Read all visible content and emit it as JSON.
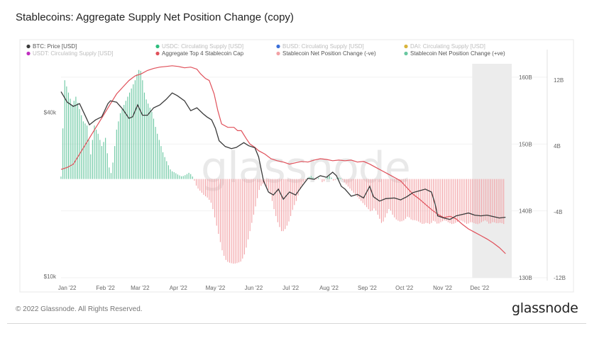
{
  "title": "Stablecoins: Aggregate Supply Net Position Change (copy)",
  "footer": {
    "copyright": "© 2022 Glassnode. All Rights Reserved.",
    "brand": "glassnode"
  },
  "watermark": "glassnode",
  "colors": {
    "btc_price": "#3a3a3a",
    "cap": "#e0505a",
    "neg": "#f2a1a5",
    "pos": "#68c7a0",
    "legend_usdc": "#2ebd7d",
    "legend_busd": "#3b6fd8",
    "legend_dai": "#d8b43b",
    "legend_usdt": "#c02fc0",
    "forecast_shade": "#ececec"
  },
  "legend": [
    {
      "label": "BTC: Price [USD]",
      "color": "#3a3a3a",
      "faint": false
    },
    {
      "label": "USDC: Circulating Supply [USD]",
      "color": "#2ebd7d",
      "faint": true
    },
    {
      "label": "BUSD: Circulating Supply [USD]",
      "color": "#3b6fd8",
      "faint": true
    },
    {
      "label": "DAI: Circulating Supply [USD]",
      "color": "#d8b43b",
      "faint": true
    },
    {
      "label": "USDT: Circulating Supply [USD]",
      "color": "#c02fc0",
      "faint": true
    },
    {
      "label": "Aggregate Top 4 Stablecoin Cap",
      "color": "#e0505a",
      "faint": false
    },
    {
      "label": "Stablecoin Net Position Change (-ve)",
      "color": "#f2a1a5",
      "faint": false
    },
    {
      "label": "Stablecoin Net Position Change (+ve)",
      "color": "#68c7a0",
      "faint": false
    }
  ],
  "chart_data": {
    "type": "line",
    "x_ticks": [
      "Jan '22",
      "Feb '22",
      "Mar '22",
      "Apr '22",
      "May '22",
      "Jun '22",
      "Jul '22",
      "Aug '22",
      "Sep '22",
      "Oct '22",
      "Nov '22",
      "Dec '22"
    ],
    "axes": {
      "price_left": {
        "scale": "log",
        "range": [
          10000,
          60000
        ],
        "ticks": [
          "$40k",
          "$10k"
        ]
      },
      "cap_right": {
        "range": [
          130,
          162
        ],
        "ticks": [
          "160B",
          "150B",
          "140B",
          "130B"
        ]
      },
      "change_right": {
        "range": [
          -12,
          14
        ],
        "ticks": [
          "12B",
          "4B",
          "-4B",
          "-12B"
        ]
      }
    },
    "x_range": [
      0,
      365
    ],
    "forecast_start": 333,
    "btc_price": [
      [
        0,
        47500
      ],
      [
        5,
        43500
      ],
      [
        10,
        42000
      ],
      [
        15,
        43000
      ],
      [
        20,
        38500
      ],
      [
        23,
        36000
      ],
      [
        28,
        37500
      ],
      [
        33,
        38500
      ],
      [
        38,
        43000
      ],
      [
        40,
        44000
      ],
      [
        45,
        43500
      ],
      [
        50,
        41000
      ],
      [
        55,
        38000
      ],
      [
        58,
        38500
      ],
      [
        62,
        42500
      ],
      [
        66,
        39000
      ],
      [
        70,
        39000
      ],
      [
        75,
        41500
      ],
      [
        80,
        42500
      ],
      [
        85,
        44500
      ],
      [
        90,
        47000
      ],
      [
        94,
        46000
      ],
      [
        100,
        44000
      ],
      [
        105,
        40500
      ],
      [
        110,
        41500
      ],
      [
        115,
        39500
      ],
      [
        118,
        38500
      ],
      [
        122,
        37500
      ],
      [
        125,
        35000
      ],
      [
        128,
        31500
      ],
      [
        133,
        30000
      ],
      [
        138,
        29500
      ],
      [
        142,
        29800
      ],
      [
        148,
        31000
      ],
      [
        152,
        30200
      ],
      [
        157,
        29700
      ],
      [
        160,
        27500
      ],
      [
        164,
        22500
      ],
      [
        168,
        20500
      ],
      [
        172,
        20000
      ],
      [
        176,
        21000
      ],
      [
        180,
        19300
      ],
      [
        185,
        20500
      ],
      [
        190,
        20000
      ],
      [
        195,
        21500
      ],
      [
        200,
        23000
      ],
      [
        205,
        22800
      ],
      [
        210,
        23500
      ],
      [
        215,
        23200
      ],
      [
        220,
        24200
      ],
      [
        223,
        23500
      ],
      [
        227,
        21500
      ],
      [
        230,
        21000
      ],
      [
        235,
        19800
      ],
      [
        240,
        20100
      ],
      [
        245,
        19500
      ],
      [
        250,
        21500
      ],
      [
        253,
        19700
      ],
      [
        258,
        19000
      ],
      [
        263,
        19400
      ],
      [
        270,
        19500
      ],
      [
        275,
        19200
      ],
      [
        280,
        19700
      ],
      [
        285,
        20400
      ],
      [
        290,
        20700
      ],
      [
        295,
        21000
      ],
      [
        300,
        20500
      ],
      [
        303,
        18500
      ],
      [
        305,
        16800
      ],
      [
        310,
        16500
      ],
      [
        315,
        16300
      ],
      [
        320,
        16800
      ],
      [
        325,
        17000
      ],
      [
        330,
        17200
      ],
      [
        335,
        16900
      ],
      [
        340,
        16800
      ],
      [
        345,
        16900
      ],
      [
        350,
        16700
      ],
      [
        355,
        16500
      ],
      [
        360,
        16600
      ]
    ],
    "stablecoin_cap": [
      [
        0,
        146.2
      ],
      [
        5,
        146.5
      ],
      [
        10,
        147
      ],
      [
        15,
        148.5
      ],
      [
        20,
        150
      ],
      [
        25,
        151.5
      ],
      [
        30,
        153
      ],
      [
        35,
        154.5
      ],
      [
        40,
        156
      ],
      [
        45,
        157.5
      ],
      [
        50,
        158.5
      ],
      [
        55,
        159.5
      ],
      [
        60,
        160.2
      ],
      [
        65,
        160.5
      ],
      [
        70,
        161
      ],
      [
        75,
        161.3
      ],
      [
        80,
        161.5
      ],
      [
        85,
        161.6
      ],
      [
        90,
        161.7
      ],
      [
        95,
        161.6
      ],
      [
        100,
        161.4
      ],
      [
        105,
        161.5
      ],
      [
        110,
        161.2
      ],
      [
        113,
        160.5
      ],
      [
        117,
        159.8
      ],
      [
        120,
        159.5
      ],
      [
        124,
        157.5
      ],
      [
        127,
        155
      ],
      [
        130,
        153
      ],
      [
        135,
        152.5
      ],
      [
        140,
        152.5
      ],
      [
        143,
        152
      ],
      [
        146,
        152
      ],
      [
        150,
        150.8
      ],
      [
        153,
        150
      ],
      [
        157,
        149.5
      ],
      [
        160,
        149
      ],
      [
        165,
        148.5
      ],
      [
        170,
        147.8
      ],
      [
        175,
        147.5
      ],
      [
        180,
        147.3
      ],
      [
        185,
        147
      ],
      [
        190,
        147.2
      ],
      [
        195,
        147.4
      ],
      [
        200,
        147.3
      ],
      [
        205,
        147.6
      ],
      [
        210,
        147.8
      ],
      [
        215,
        147.7
      ],
      [
        220,
        147.5
      ],
      [
        225,
        147.6
      ],
      [
        230,
        147.5
      ],
      [
        235,
        147.6
      ],
      [
        240,
        147.3
      ],
      [
        245,
        147.4
      ],
      [
        250,
        147
      ],
      [
        255,
        146.5
      ],
      [
        260,
        146
      ],
      [
        265,
        145.5
      ],
      [
        270,
        145
      ],
      [
        275,
        144.5
      ],
      [
        280,
        143.5
      ],
      [
        285,
        142.5
      ],
      [
        290,
        141.8
      ],
      [
        295,
        141
      ],
      [
        300,
        140.2
      ],
      [
        305,
        139.5
      ],
      [
        310,
        139
      ],
      [
        315,
        139.2
      ],
      [
        320,
        138.8
      ],
      [
        325,
        138
      ],
      [
        330,
        137.3
      ],
      [
        335,
        136.8
      ],
      [
        340,
        136.3
      ],
      [
        345,
        135.8
      ],
      [
        350,
        135.2
      ],
      [
        355,
        134.5
      ],
      [
        360,
        133.6
      ]
    ],
    "net_position_change": [
      [
        0,
        0.3
      ],
      [
        3,
        12
      ],
      [
        6,
        10.5
      ],
      [
        9,
        9
      ],
      [
        12,
        10
      ],
      [
        15,
        8.5
      ],
      [
        18,
        7
      ],
      [
        21,
        6.5
      ],
      [
        24,
        3
      ],
      [
        27,
        6.5
      ],
      [
        30,
        5.5
      ],
      [
        33,
        4
      ],
      [
        36,
        5
      ],
      [
        38,
        2.5
      ],
      [
        40,
        0.3
      ],
      [
        42,
        2
      ],
      [
        45,
        6
      ],
      [
        48,
        8
      ],
      [
        51,
        9
      ],
      [
        54,
        10
      ],
      [
        57,
        11
      ],
      [
        60,
        12
      ],
      [
        62,
        13
      ],
      [
        64,
        13.5
      ],
      [
        66,
        12
      ],
      [
        68,
        10
      ],
      [
        71,
        9
      ],
      [
        74,
        8
      ],
      [
        77,
        6
      ],
      [
        80,
        4.5
      ],
      [
        83,
        3
      ],
      [
        86,
        2
      ],
      [
        89,
        1
      ],
      [
        92,
        0.8
      ],
      [
        95,
        0.5
      ],
      [
        98,
        0.3
      ],
      [
        101,
        0.5
      ],
      [
        104,
        0.8
      ],
      [
        107,
        0.2
      ],
      [
        110,
        -1
      ],
      [
        113,
        -1.5
      ],
      [
        116,
        -2
      ],
      [
        119,
        -2.3
      ],
      [
        122,
        -3
      ],
      [
        125,
        -5
      ],
      [
        128,
        -7
      ],
      [
        131,
        -9
      ],
      [
        134,
        -10
      ],
      [
        137,
        -10.2
      ],
      [
        140,
        -10.3
      ],
      [
        143,
        -10.2
      ],
      [
        146,
        -10
      ],
      [
        149,
        -9
      ],
      [
        152,
        -7
      ],
      [
        155,
        -5
      ],
      [
        158,
        -3
      ],
      [
        161,
        -1
      ],
      [
        164,
        -0.5
      ],
      [
        167,
        -1
      ],
      [
        170,
        -2
      ],
      [
        173,
        -4
      ],
      [
        176,
        -5.5
      ],
      [
        179,
        -6.5
      ],
      [
        182,
        -6
      ],
      [
        185,
        -5
      ],
      [
        188,
        -3.5
      ],
      [
        191,
        -2.5
      ],
      [
        194,
        -1
      ],
      [
        197,
        -0.3
      ],
      [
        200,
        0.2
      ],
      [
        203,
        0.4
      ],
      [
        206,
        -0.2
      ],
      [
        209,
        0.2
      ],
      [
        212,
        -0.5
      ],
      [
        215,
        0.2
      ],
      [
        218,
        0.4
      ],
      [
        221,
        -0.3
      ],
      [
        224,
        0.2
      ],
      [
        227,
        0.1
      ],
      [
        230,
        -0.5
      ],
      [
        233,
        -1
      ],
      [
        236,
        -1.5
      ],
      [
        239,
        -2
      ],
      [
        242,
        -2.5
      ],
      [
        245,
        -3
      ],
      [
        248,
        -3.5
      ],
      [
        251,
        -4
      ],
      [
        254,
        -3.5
      ],
      [
        257,
        -4.5
      ],
      [
        260,
        -5.5
      ],
      [
        263,
        -4.5
      ],
      [
        266,
        -3.5
      ],
      [
        269,
        -4.5
      ],
      [
        272,
        -5
      ],
      [
        275,
        -5.2
      ],
      [
        278,
        -5
      ],
      [
        281,
        -4.5
      ],
      [
        284,
        -5
      ],
      [
        287,
        -5
      ],
      [
        290,
        -5.2
      ],
      [
        293,
        -5.5
      ],
      [
        296,
        -5.3
      ],
      [
        299,
        -5.5
      ],
      [
        302,
        -5
      ],
      [
        305,
        -5.5
      ],
      [
        308,
        -5.2
      ],
      [
        311,
        -5
      ],
      [
        314,
        -5.3
      ],
      [
        317,
        -5.5
      ],
      [
        320,
        -5.3
      ],
      [
        323,
        -5
      ],
      [
        326,
        -5.2
      ],
      [
        329,
        -5.5
      ],
      [
        332,
        -5.2
      ],
      [
        335,
        -5.4
      ],
      [
        338,
        -5.5
      ],
      [
        341,
        -5.2
      ],
      [
        344,
        -5
      ],
      [
        347,
        -5.5
      ],
      [
        350,
        -5.2
      ],
      [
        353,
        -5.4
      ],
      [
        356,
        -5.3
      ],
      [
        359,
        -5.5
      ]
    ]
  }
}
